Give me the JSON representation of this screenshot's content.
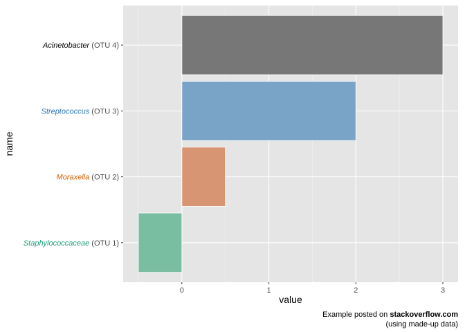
{
  "chart_data": {
    "type": "bar",
    "orientation": "horizontal",
    "xlabel": "value",
    "ylabel": "name",
    "xlim": [
      -0.675,
      3.175
    ],
    "xticks": [
      0,
      1,
      2,
      3
    ],
    "grid": true,
    "categories": [
      {
        "italic": "Staphylococcaceae",
        "suffix": " (OTU 1)",
        "value": -0.5,
        "label_color": "#1b9e77",
        "fill": "#7abea1"
      },
      {
        "italic": "Moraxella",
        "suffix": " (OTU 2)",
        "value": 0.5,
        "label_color": "#d95f02",
        "fill": "#d79573"
      },
      {
        "italic": "Streptococcus",
        "suffix": " (OTU 3)",
        "value": 2,
        "label_color": "#2c74b5",
        "fill": "#7aa3c8"
      },
      {
        "italic": "Acinetobacter",
        "suffix": " (OTU 4)",
        "value": 3,
        "label_color": "#000000",
        "fill": "#777777"
      }
    ],
    "caption": {
      "prefix": "Example posted on ",
      "bold": "stackoverflow.com",
      "line2": "(using made-up data)"
    }
  }
}
